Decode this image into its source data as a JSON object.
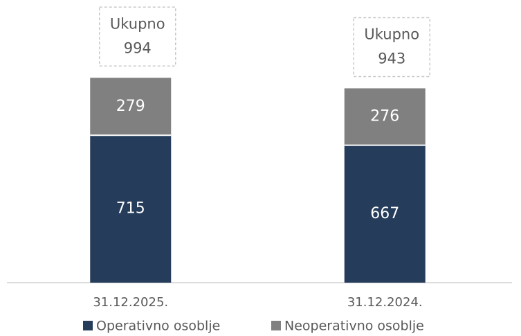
{
  "chart_data": {
    "type": "stacked_bar",
    "categories": [
      "31.12.2025.",
      "31.12.2024."
    ],
    "series": [
      {
        "name": "Operativno osoblje",
        "color": "#253d5b",
        "values": [
          715,
          667
        ]
      },
      {
        "name": "Neoperativno osoblje",
        "color": "#808080",
        "values": [
          279,
          276
        ]
      }
    ],
    "totals": {
      "label": "Ukupno",
      "values": [
        994,
        943
      ]
    },
    "ylim": [
      0,
      1200
    ],
    "legend": "bottom"
  }
}
